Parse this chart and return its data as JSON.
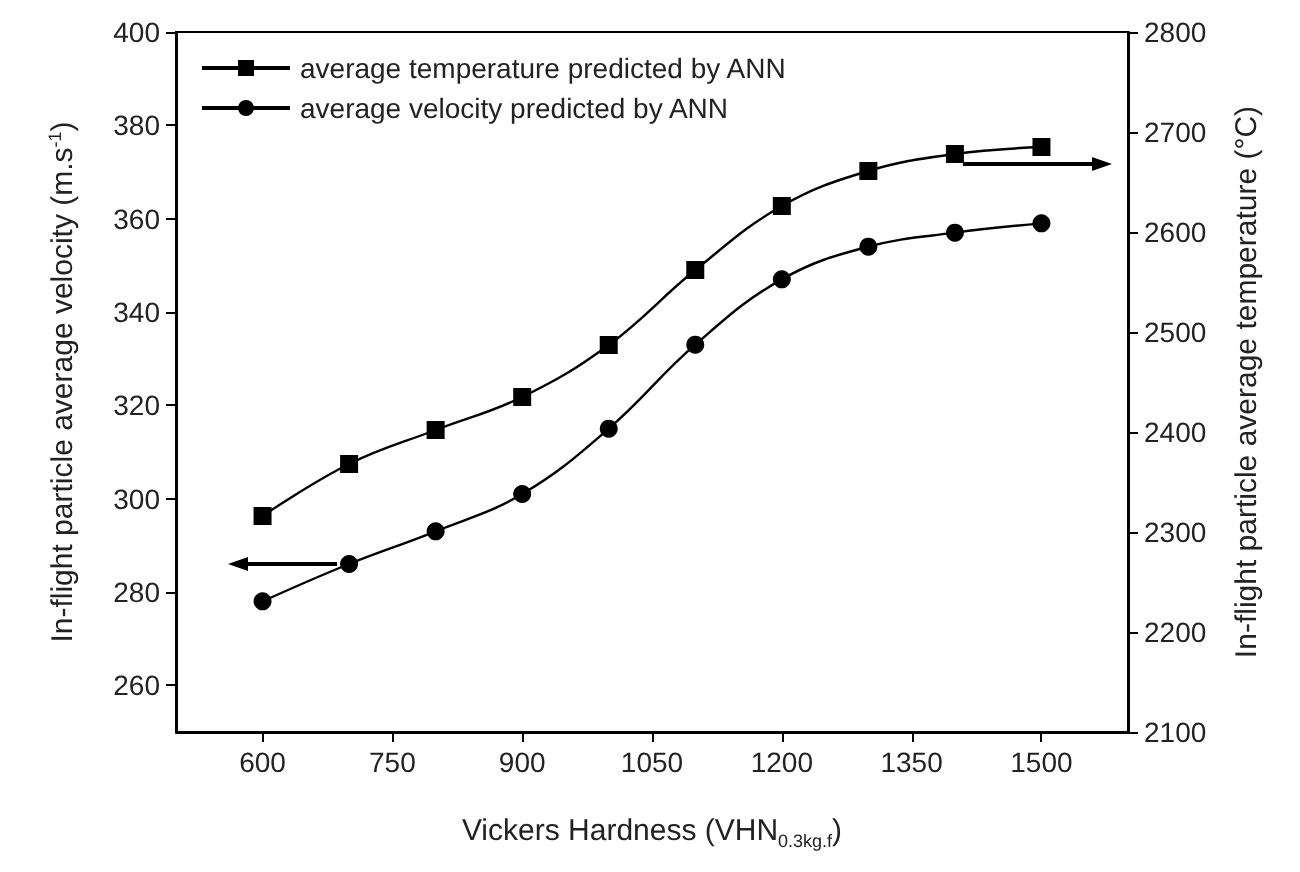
{
  "chart_data": {
    "type": "line",
    "xlabel": "Vickers Hardness (VHN$_{0.3kg.f}$)",
    "ylabel": "In-flight particle average velocity (m.s$^{-1}$)",
    "y2label": "In-flight particle average temperature (°C)",
    "x": [
      600,
      700,
      800,
      900,
      1000,
      1100,
      1200,
      1300,
      1400,
      1500
    ],
    "series": [
      {
        "name": "average temperature predicted by ANN",
        "color": "#000000",
        "axis": "y2",
        "marker": "square",
        "values": [
          2316,
          2368,
          2402,
          2435,
          2487,
          2562,
          2626,
          2661,
          2678,
          2685
        ]
      },
      {
        "name": "average velocity predicted by ANN",
        "color": "#000000",
        "marker": "circle",
        "values": [
          278,
          286,
          293,
          301,
          315,
          333,
          347,
          354,
          357,
          359
        ]
      }
    ],
    "xlim": [
      500,
      1600
    ],
    "xticks": [
      600,
      750,
      900,
      1050,
      1200,
      1350,
      1500
    ],
    "ylim": [
      250,
      400
    ],
    "yticks": [
      260,
      280,
      300,
      320,
      340,
      360,
      380,
      400
    ],
    "y2lim": [
      2100,
      2800
    ],
    "y2ticks": [
      2100,
      2200,
      2300,
      2400,
      2500,
      2600,
      2700,
      2800
    ],
    "legend": "top left",
    "grid": false,
    "line_style": "solid"
  }
}
